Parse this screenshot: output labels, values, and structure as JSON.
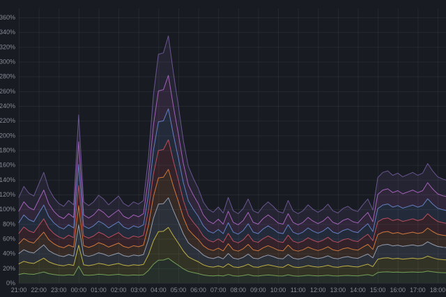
{
  "panel": {
    "background": "#181b21",
    "grid_color": "rgba(204,212,235,0.07)",
    "axis_text_color": "#868a94",
    "fill_opacity": 0.16
  },
  "chart_data": {
    "type": "area",
    "stacked": true,
    "title": "",
    "xlabel": "",
    "ylabel": "",
    "y_unit": "%",
    "ylim": [
      0,
      368
    ],
    "grid": true,
    "legend": "none",
    "y_ticks": [
      "0%",
      "20%",
      "40%",
      "60%",
      "80%",
      "100%",
      "120%",
      "140%",
      "160%",
      "180%",
      "200%",
      "220%",
      "240%",
      "260%",
      "280%",
      "300%",
      "320%",
      "340%",
      "360%"
    ],
    "x_ticks": [
      "21:00",
      "22:00",
      "23:00",
      "00:00",
      "01:00",
      "02:00",
      "03:00",
      "04:00",
      "05:00",
      "06:00",
      "07:00",
      "08:00",
      "09:00",
      "10:00",
      "11:00",
      "12:00",
      "13:00",
      "14:00",
      "15:00",
      "16:00",
      "17:00",
      "18:00"
    ],
    "start_time": "21:00",
    "interval_minutes": 15,
    "envelope_total_percent": [
      116,
      131,
      122,
      118,
      134,
      150,
      128,
      116,
      108,
      104,
      112,
      106,
      228,
      110,
      105,
      110,
      119,
      114,
      106,
      112,
      118,
      108,
      104,
      110,
      107,
      112,
      170,
      255,
      310,
      312,
      335,
      285,
      240,
      193,
      158,
      142,
      128,
      110,
      100,
      96,
      103,
      95,
      116,
      98,
      94,
      101,
      114,
      98,
      95,
      104,
      110,
      104,
      97,
      95,
      112,
      98,
      94,
      98,
      106,
      100,
      96,
      100,
      107,
      98,
      95,
      101,
      104,
      99,
      97,
      106,
      114,
      99,
      143,
      150,
      152,
      146,
      149,
      144,
      147,
      150,
      146,
      149,
      162,
      152,
      144,
      141,
      139
    ],
    "series_note": "stacked bottom-to-top; each series value = fraction * envelope_total_percent at each 15-min point",
    "series": [
      {
        "name": "green",
        "color": "#6d9e5a",
        "fraction": 0.1
      },
      {
        "name": "olive-yellow",
        "color": "#c3b23f",
        "fraction": 0.125
      },
      {
        "name": "slate-blue",
        "color": "#8fa0ba",
        "fraction": 0.12
      },
      {
        "name": "orange",
        "color": "#ce7b3c",
        "fraction": 0.115
      },
      {
        "name": "red",
        "color": "#bf4a58",
        "fraction": 0.12
      },
      {
        "name": "blue",
        "color": "#5e81c2",
        "fraction": 0.125
      },
      {
        "name": "magenta",
        "color": "#a863bd",
        "fraction": 0.135
      },
      {
        "name": "purple",
        "color": "#6a5691",
        "fraction": 0.16
      }
    ],
    "features": {
      "spike_time": "00:00",
      "spike_total_percent": 228,
      "main_peak_time": "04:30",
      "main_peak_total_percent": 335,
      "evening_plateau_start": "15:00",
      "evening_plateau_total_percent": 150
    }
  }
}
